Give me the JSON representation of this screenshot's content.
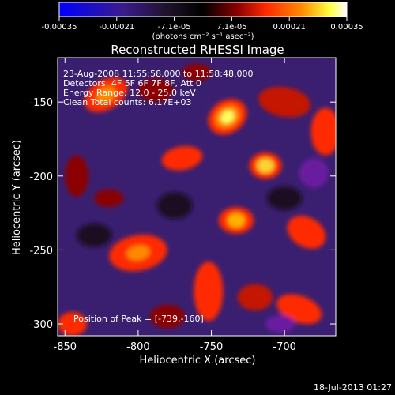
{
  "colorbar": {
    "ticks": [
      "-0.00035",
      "-0.00021",
      "-7.1e-05",
      "7.1e-05",
      "0.00021",
      "0.00035"
    ],
    "units": "(photons cm⁻² s⁻¹ asec⁻²)"
  },
  "overlay": {
    "time": "23-Aug-2008 11:55:58.000 to 11:58:48.000",
    "detectors": "Detectors: 4F 5F 6F 7F 8F, Att 0",
    "energy": "Energy Range: 12.0 - 25.0 keV",
    "clean": "Clean     Total counts: 6.17E+03",
    "peak": "Position of Peak = [-739,-160]"
  },
  "footer": {
    "date": "18-Jul-2013 01:27"
  },
  "chart_data": {
    "type": "heatmap",
    "title": "Reconstructed RHESSI Image",
    "xlabel": "Heliocentric X (arcsec)",
    "ylabel": "Heliocentric Y (arcsec)",
    "xlim": [
      -855,
      -665
    ],
    "ylim": [
      -308,
      -120
    ],
    "xticks": [
      "-850",
      "-800",
      "-750",
      "-700"
    ],
    "xtick_values": [
      -850,
      -800,
      -750,
      -700
    ],
    "yticks": [
      "-150",
      "-200",
      "-250",
      "-300"
    ],
    "ytick_values": [
      -150,
      -200,
      -250,
      -300
    ],
    "peak_position": [
      -739,
      -160
    ],
    "colormap": [
      "#0000ff",
      "#3a1c8c",
      "#1e1228",
      "#000000",
      "#8b0000",
      "#ff2a00",
      "#ff8800",
      "#ffff40",
      "#ffffff"
    ],
    "range": [
      -0.00035,
      0.00035
    ]
  }
}
